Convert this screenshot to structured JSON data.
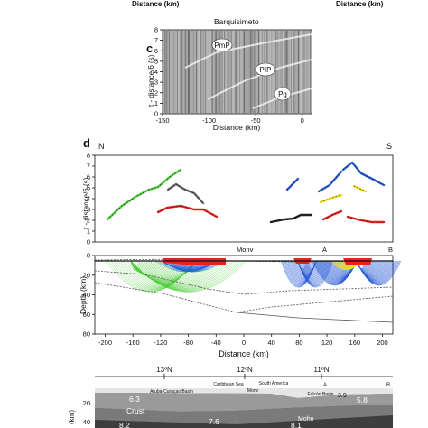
{
  "top_axis": {
    "left_label": "Distance (km)",
    "right_label": "Distance (km)"
  },
  "panel_c": {
    "letter": "c",
    "title": "Barquisimeto",
    "ylabel": "t - distance/6 (s)",
    "xlabel": "Distance (km)",
    "yticks": [
      "8",
      "7",
      "6",
      "5",
      "4",
      "3",
      "2",
      "1",
      "0"
    ],
    "xticks": [
      "-150",
      "-100",
      "-50",
      "0"
    ],
    "phases": [
      "PmP",
      "PIP",
      "Pg"
    ]
  },
  "panel_d": {
    "letter": "d",
    "left_dir": "N",
    "right_dir": "S",
    "ylabel": "t - distance/6 (s)",
    "yticks": [
      "8",
      "7",
      "6",
      "5",
      "4",
      "3",
      "2",
      "1",
      "0"
    ],
    "section": {
      "markers": [
        "Monv",
        "A",
        "B"
      ],
      "ylabel": "Depth (km)",
      "yticks": [
        "0",
        "20",
        "40",
        "60",
        "80"
      ],
      "xticks": [
        "-200",
        "-160",
        "-120",
        "-80",
        "-40",
        "0",
        "40",
        "80",
        "120",
        "160",
        "200"
      ],
      "xlabel": "Distance (km)",
      "colors": {
        "green": "#4dcc3a",
        "blue": "#2a5bd7",
        "red": "#e8231e",
        "yellow": "#f2e21a"
      }
    }
  },
  "panel_e": {
    "lat_labels": [
      "13ºN",
      "12ºN",
      "11ºN"
    ],
    "region_labels": [
      "Caribbean Sea",
      "South America"
    ],
    "basin_labels": [
      "Aruba-Curaçao Basin",
      "Falcón Basin",
      "Monv"
    ],
    "markers": [
      "A",
      "B"
    ],
    "velocities": [
      "6.3",
      "5.8",
      "3.9",
      "7.6",
      "8.2",
      "8.1"
    ],
    "layer_labels": [
      "Crust",
      "Moho"
    ],
    "ylabel": "(km)",
    "yticks": [
      "20",
      "40"
    ]
  }
}
